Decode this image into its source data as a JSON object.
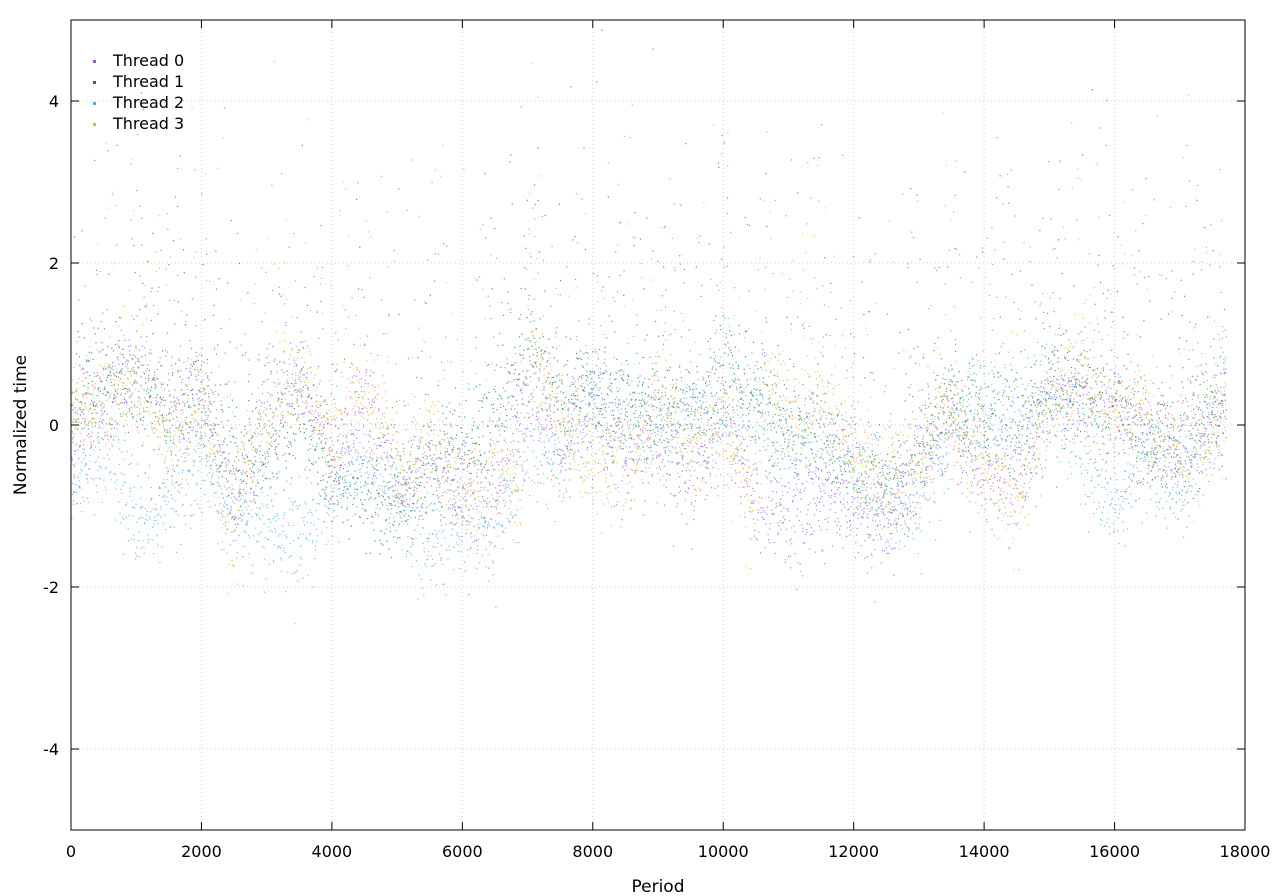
{
  "chart_data": {
    "type": "scatter",
    "title": "",
    "xlabel": "Period",
    "ylabel": "Normalized time",
    "xlim": [
      0,
      18000
    ],
    "ylim": [
      -5,
      5
    ],
    "xticks": [
      0,
      2000,
      4000,
      6000,
      8000,
      10000,
      12000,
      14000,
      16000,
      18000
    ],
    "yticks": [
      -4,
      -2,
      0,
      2,
      4
    ],
    "grid": true,
    "legend_position": "top-left",
    "series": [
      {
        "name": "Thread 0",
        "color": "#9b59d0",
        "trend": [
          [
            0,
            -0.3
          ],
          [
            500,
            0.2
          ],
          [
            1000,
            0.9
          ],
          [
            1500,
            0.3
          ],
          [
            2000,
            0.5
          ],
          [
            2300,
            -0.6
          ],
          [
            2500,
            -1.0
          ],
          [
            3000,
            0.2
          ],
          [
            3500,
            0.5
          ],
          [
            4000,
            -0.4
          ],
          [
            4500,
            0.3
          ],
          [
            5000,
            -0.7
          ],
          [
            5500,
            -0.5
          ],
          [
            6000,
            -0.9
          ],
          [
            6500,
            -0.8
          ],
          [
            7000,
            0.4
          ],
          [
            7500,
            -0.3
          ],
          [
            8000,
            0.2
          ],
          [
            8500,
            -0.5
          ],
          [
            9000,
            -0.2
          ],
          [
            9500,
            -0.7
          ],
          [
            10000,
            0.1
          ],
          [
            10500,
            -1.0
          ],
          [
            11000,
            -1.2
          ],
          [
            11500,
            -0.9
          ],
          [
            12000,
            -1.1
          ],
          [
            12500,
            -1.3
          ],
          [
            13000,
            -0.4
          ],
          [
            13500,
            0.0
          ],
          [
            14000,
            -0.6
          ],
          [
            14500,
            -0.8
          ],
          [
            15000,
            0.2
          ],
          [
            15500,
            0.4
          ],
          [
            16000,
            0.1
          ],
          [
            16500,
            -0.2
          ],
          [
            17000,
            -0.1
          ],
          [
            17700,
            0.1
          ]
        ]
      },
      {
        "name": "Thread 1",
        "color": "#1f7a4d",
        "trend": [
          [
            0,
            0.2
          ],
          [
            500,
            0.6
          ],
          [
            1000,
            0.4
          ],
          [
            1500,
            0.0
          ],
          [
            2000,
            0.3
          ],
          [
            2500,
            -0.5
          ],
          [
            3000,
            -0.3
          ],
          [
            3500,
            0.2
          ],
          [
            4000,
            -0.6
          ],
          [
            4500,
            -0.8
          ],
          [
            5000,
            -1.0
          ],
          [
            5500,
            -0.6
          ],
          [
            6000,
            -0.4
          ],
          [
            6500,
            0.1
          ],
          [
            7000,
            1.0
          ],
          [
            7500,
            0.3
          ],
          [
            8000,
            0.5
          ],
          [
            8500,
            0.2
          ],
          [
            9000,
            0.3
          ],
          [
            9500,
            0.1
          ],
          [
            10000,
            0.6
          ],
          [
            10500,
            0.3
          ],
          [
            11000,
            0.0
          ],
          [
            11500,
            -0.2
          ],
          [
            12000,
            -0.5
          ],
          [
            12500,
            -0.8
          ],
          [
            13000,
            -0.4
          ],
          [
            13500,
            0.2
          ],
          [
            14000,
            0.1
          ],
          [
            14500,
            -0.1
          ],
          [
            15000,
            0.5
          ],
          [
            15500,
            0.4
          ],
          [
            16000,
            0.2
          ],
          [
            16500,
            -0.2
          ],
          [
            17000,
            -0.4
          ],
          [
            17700,
            0.3
          ]
        ]
      },
      {
        "name": "Thread 2",
        "color": "#56a9d9",
        "trend": [
          [
            0,
            -0.7
          ],
          [
            500,
            -0.2
          ],
          [
            1000,
            -1.2
          ],
          [
            1500,
            -0.9
          ],
          [
            2000,
            -0.4
          ],
          [
            2500,
            -1.2
          ],
          [
            3000,
            -1.3
          ],
          [
            3500,
            -1.4
          ],
          [
            4000,
            -0.8
          ],
          [
            4500,
            -0.5
          ],
          [
            5000,
            -1.0
          ],
          [
            5500,
            -1.4
          ],
          [
            6000,
            -1.2
          ],
          [
            6500,
            -1.3
          ],
          [
            7000,
            -0.3
          ],
          [
            7500,
            -0.5
          ],
          [
            8000,
            0.5
          ],
          [
            8500,
            0.1
          ],
          [
            9000,
            -0.2
          ],
          [
            9500,
            0.2
          ],
          [
            10000,
            -0.1
          ],
          [
            10500,
            0.1
          ],
          [
            11000,
            -0.4
          ],
          [
            11500,
            -0.2
          ],
          [
            12000,
            -0.6
          ],
          [
            12500,
            -0.9
          ],
          [
            13000,
            -1.0
          ],
          [
            13500,
            0.0
          ],
          [
            14000,
            0.3
          ],
          [
            14500,
            0.1
          ],
          [
            15000,
            0.6
          ],
          [
            15500,
            -0.4
          ],
          [
            16000,
            -1.0
          ],
          [
            16500,
            -0.3
          ],
          [
            17000,
            -0.8
          ],
          [
            17700,
            0.6
          ]
        ]
      },
      {
        "name": "Thread 3",
        "color": "#e0b040",
        "trend": [
          [
            0,
            0.1
          ],
          [
            500,
            0.3
          ],
          [
            1000,
            0.5
          ],
          [
            1500,
            -0.3
          ],
          [
            2000,
            0.3
          ],
          [
            2400,
            -1.2
          ],
          [
            2700,
            -0.4
          ],
          [
            3000,
            0.0
          ],
          [
            3500,
            0.6
          ],
          [
            4000,
            -0.2
          ],
          [
            4500,
            0.4
          ],
          [
            5000,
            -0.6
          ],
          [
            5500,
            -0.2
          ],
          [
            6000,
            -0.9
          ],
          [
            6500,
            -0.5
          ],
          [
            6900,
            -1.0
          ],
          [
            7000,
            1.2
          ],
          [
            7500,
            -0.2
          ],
          [
            8000,
            -0.4
          ],
          [
            8500,
            -0.6
          ],
          [
            9000,
            0.4
          ],
          [
            9500,
            -0.3
          ],
          [
            10000,
            0.0
          ],
          [
            10400,
            -1.0
          ],
          [
            10700,
            0.6
          ],
          [
            11000,
            0.1
          ],
          [
            11500,
            0.3
          ],
          [
            12000,
            -0.4
          ],
          [
            12500,
            -0.8
          ],
          [
            13000,
            -0.6
          ],
          [
            13300,
            0.4
          ],
          [
            13800,
            -0.3
          ],
          [
            14500,
            -1.1
          ],
          [
            15000,
            0.3
          ],
          [
            15500,
            0.7
          ],
          [
            16000,
            0.1
          ],
          [
            16500,
            0.2
          ],
          [
            17000,
            -0.5
          ],
          [
            17700,
            0.2
          ]
        ]
      }
    ]
  }
}
